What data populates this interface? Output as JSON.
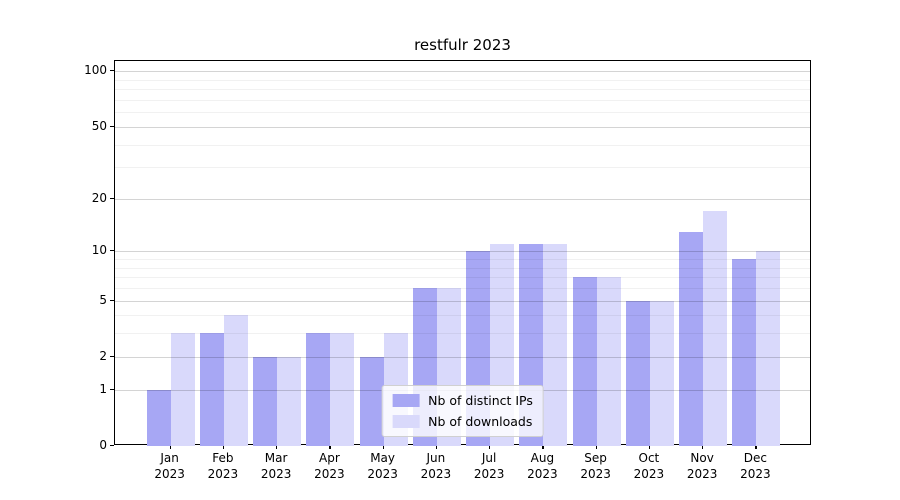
{
  "page": {
    "background": "#ffffff"
  },
  "chart_data": {
    "type": "bar",
    "title": "restfulr 2023",
    "categories": [
      "Jan",
      "Feb",
      "Mar",
      "Apr",
      "May",
      "Jun",
      "Jul",
      "Aug",
      "Sep",
      "Oct",
      "Nov",
      "Dec"
    ],
    "x_year": "2023",
    "series": [
      {
        "name": "Nb of distinct IPs",
        "color": "#a7a7f4",
        "values": [
          1,
          3,
          2,
          3,
          2,
          6,
          10,
          11,
          7,
          5,
          13,
          9
        ]
      },
      {
        "name": "Nb of downloads",
        "color": "#d9d9fb",
        "values": [
          3,
          4,
          2,
          3,
          3,
          6,
          11,
          11,
          7,
          5,
          17,
          10
        ]
      }
    ],
    "y_axis": {
      "scale": "log1p",
      "ticks": [
        0,
        1,
        2,
        5,
        10,
        20,
        50,
        100
      ],
      "minor_ticks": [
        3,
        4,
        6,
        7,
        8,
        9,
        30,
        40,
        60,
        70,
        80,
        90
      ],
      "max": 100
    },
    "ylim": [
      0,
      100
    ],
    "grid": true,
    "legend": {
      "position": "lower-center"
    }
  }
}
